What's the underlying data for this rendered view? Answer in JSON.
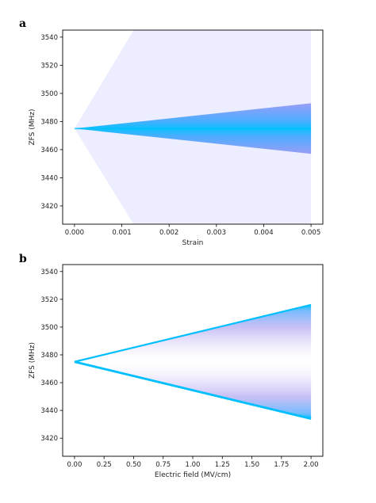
{
  "chart_data": [
    {
      "type": "area",
      "panel_label": "a",
      "xlabel": "Strain",
      "ylabel": "ZFS (MHz)",
      "xlim": [
        -0.00025,
        0.00525
      ],
      "ylim": [
        3407,
        3545
      ],
      "xticks": [
        0,
        0.001,
        0.002,
        0.003,
        0.004,
        0.005
      ],
      "xtick_labels": [
        "0.000",
        "0.001",
        "0.002",
        "0.003",
        "0.004",
        "0.005"
      ],
      "yticks": [
        3420,
        3440,
        3460,
        3480,
        3500,
        3520,
        3540
      ],
      "ytick_labels": [
        "3420",
        "3440",
        "3460",
        "3480",
        "3500",
        "3520",
        "3540"
      ],
      "grid": false,
      "series": [
        {
          "x": [
            0,
            0.005
          ],
          "upper": [
            3475,
            3493
          ],
          "lower": [
            3475,
            3457
          ],
          "color": "#6f78f0",
          "density": "dense"
        },
        {
          "x": [
            0,
            0.00125,
            0.005
          ],
          "upper": [
            3475,
            3545,
            3545
          ],
          "lower": [
            3475,
            3407,
            3407
          ],
          "color": "#c8ccff",
          "density": "sparse"
        }
      ],
      "colors": {
        "dense": "#00bfff",
        "mid": "#6f78f0",
        "faint": "#d8dbff"
      }
    },
    {
      "type": "area",
      "panel_label": "b",
      "xlabel": "Electric field (MV/cm)",
      "ylabel": "ZFS (MHz)",
      "xlim": [
        -0.1,
        2.1
      ],
      "ylim": [
        3407,
        3545
      ],
      "xticks": [
        0,
        0.25,
        0.5,
        0.75,
        1.0,
        1.25,
        1.5,
        1.75,
        2.0
      ],
      "xtick_labels": [
        "0.00",
        "0.25",
        "0.50",
        "0.75",
        "1.00",
        "1.25",
        "1.50",
        "1.75",
        "2.00"
      ],
      "yticks": [
        3420,
        3440,
        3460,
        3480,
        3500,
        3520,
        3540
      ],
      "ytick_labels": [
        "3420",
        "3440",
        "3460",
        "3480",
        "3500",
        "3520",
        "3540"
      ],
      "grid": false,
      "series": [
        {
          "x": [
            0,
            2.0
          ],
          "upper": [
            3475,
            3516
          ],
          "lower": [
            3475,
            3434
          ],
          "color": "#00bfff",
          "density": "edges"
        }
      ],
      "colors": {
        "edge": "#00bfff",
        "inner": "#a69cf0",
        "center": "#ffffff"
      }
    }
  ]
}
